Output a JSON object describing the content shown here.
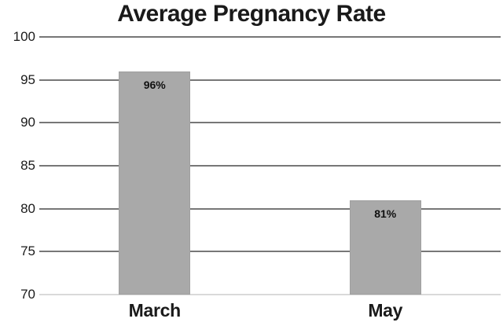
{
  "chart_data": {
    "type": "bar",
    "title": "Average Pregnancy Rate",
    "categories": [
      "March",
      "May"
    ],
    "values": [
      96,
      81
    ],
    "value_labels": [
      "96%",
      "81%"
    ],
    "xlabel": "",
    "ylabel": "",
    "ylim": [
      70,
      100
    ],
    "yticks": [
      100,
      95,
      90,
      85,
      80,
      75,
      70
    ],
    "grid": true,
    "legend": "none",
    "colors": {
      "background": "#ffffff",
      "bar_fill": "#a9a9a9",
      "bar_border": "#a0a0a0",
      "gridline": "#777777",
      "baseline": "#d9d9d9",
      "text": "#1a1a1a"
    }
  }
}
